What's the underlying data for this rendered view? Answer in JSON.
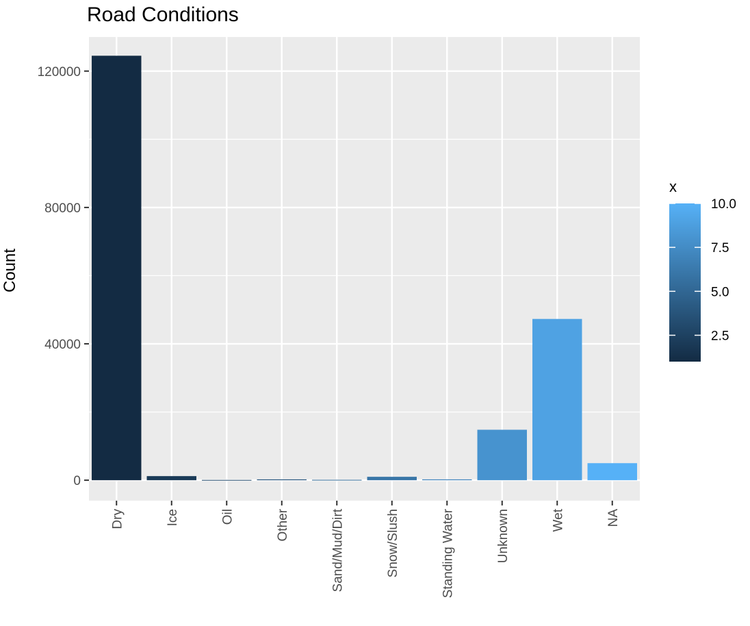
{
  "chart_data": {
    "type": "bar",
    "title": "Road Conditions",
    "xlabel": "",
    "ylabel": "Count",
    "categories": [
      "Dry",
      "Ice",
      "Oil",
      "Other",
      "Sand/Mud/Dirt",
      "Snow/Slush",
      "Standing Water",
      "Unknown",
      "Wet",
      "NA"
    ],
    "values": [
      124500,
      1200,
      80,
      250,
      120,
      1000,
      250,
      14800,
      47300,
      5000
    ],
    "fill_values": [
      1,
      2,
      3,
      4,
      5,
      6,
      7,
      8,
      9,
      10
    ],
    "ylim": [
      -6000,
      130000
    ],
    "yticks": [
      0,
      40000,
      80000,
      120000
    ],
    "ytick_labels": [
      "0",
      "40000",
      "80000",
      "120000"
    ],
    "grid": true,
    "legend": {
      "title": "x",
      "position": "right",
      "range": [
        1,
        10
      ],
      "ticks": [
        2.5,
        5.0,
        7.5,
        10.0
      ],
      "tick_labels": [
        "2.5",
        "5.0",
        "7.5",
        "10.0"
      ],
      "low_color": "#132b43",
      "high_color": "#56b1f7"
    },
    "colors": {
      "panel": "#ebebeb",
      "grid": "#ffffff",
      "tick_text": "#4d4d4d",
      "tick_mark": "#333333"
    }
  }
}
